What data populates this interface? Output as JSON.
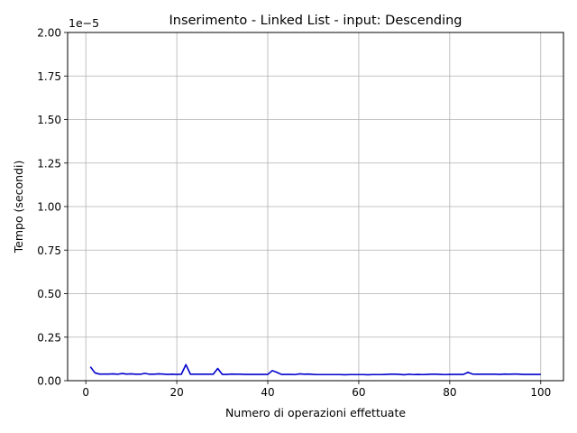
{
  "chart_data": {
    "type": "line",
    "title": "Inserimento - Linked List - input: Descending",
    "xlabel": "Numero di operazioni effettuate",
    "ylabel": "Tempo (secondi)",
    "y_offset_label": "1e−5",
    "xlim": [
      -4,
      105
    ],
    "ylim": [
      0,
      2.0
    ],
    "y_scale_factor": 1e-05,
    "grid": true,
    "x_ticks": [
      0,
      20,
      40,
      60,
      80,
      100
    ],
    "x_tick_labels": [
      "0",
      "20",
      "40",
      "60",
      "80",
      "100"
    ],
    "y_ticks": [
      0,
      0.25,
      0.5,
      0.75,
      1.0,
      1.25,
      1.5,
      1.75,
      2.0
    ],
    "y_tick_labels": [
      "0.00",
      "0.25",
      "0.50",
      "0.75",
      "1.00",
      "1.25",
      "1.50",
      "1.75",
      "2.00"
    ],
    "series": [
      {
        "color": "#0000cc",
        "x": [
          1,
          2,
          3,
          4,
          5,
          6,
          7,
          8,
          9,
          10,
          11,
          12,
          13,
          14,
          15,
          16,
          17,
          18,
          19,
          20,
          21,
          22,
          23,
          24,
          25,
          26,
          27,
          28,
          29,
          30,
          31,
          32,
          33,
          34,
          35,
          36,
          37,
          38,
          39,
          40,
          41,
          42,
          43,
          44,
          45,
          46,
          47,
          48,
          49,
          50,
          51,
          52,
          53,
          54,
          55,
          56,
          57,
          58,
          59,
          60,
          61,
          62,
          63,
          64,
          65,
          66,
          67,
          68,
          69,
          70,
          71,
          72,
          73,
          74,
          75,
          76,
          77,
          78,
          79,
          80,
          81,
          82,
          83,
          84,
          85,
          86,
          87,
          88,
          89,
          90,
          91,
          92,
          93,
          94,
          95,
          96,
          97,
          98,
          99,
          100
        ],
        "y": [
          0.08,
          0.045,
          0.038,
          0.038,
          0.038,
          0.039,
          0.037,
          0.041,
          0.038,
          0.039,
          0.037,
          0.037,
          0.042,
          0.037,
          0.037,
          0.039,
          0.038,
          0.036,
          0.037,
          0.036,
          0.037,
          0.092,
          0.037,
          0.037,
          0.037,
          0.037,
          0.037,
          0.037,
          0.07,
          0.036,
          0.036,
          0.038,
          0.037,
          0.037,
          0.036,
          0.036,
          0.036,
          0.036,
          0.036,
          0.036,
          0.058,
          0.048,
          0.036,
          0.036,
          0.036,
          0.035,
          0.039,
          0.037,
          0.038,
          0.036,
          0.035,
          0.035,
          0.035,
          0.035,
          0.035,
          0.035,
          0.034,
          0.035,
          0.035,
          0.035,
          0.035,
          0.034,
          0.035,
          0.035,
          0.035,
          0.036,
          0.037,
          0.037,
          0.036,
          0.034,
          0.037,
          0.035,
          0.036,
          0.035,
          0.036,
          0.037,
          0.037,
          0.036,
          0.035,
          0.036,
          0.036,
          0.036,
          0.036,
          0.048,
          0.038,
          0.037,
          0.037,
          0.037,
          0.037,
          0.037,
          0.036,
          0.038,
          0.037,
          0.038,
          0.038,
          0.036,
          0.036,
          0.036,
          0.036,
          0.036
        ]
      }
    ]
  }
}
